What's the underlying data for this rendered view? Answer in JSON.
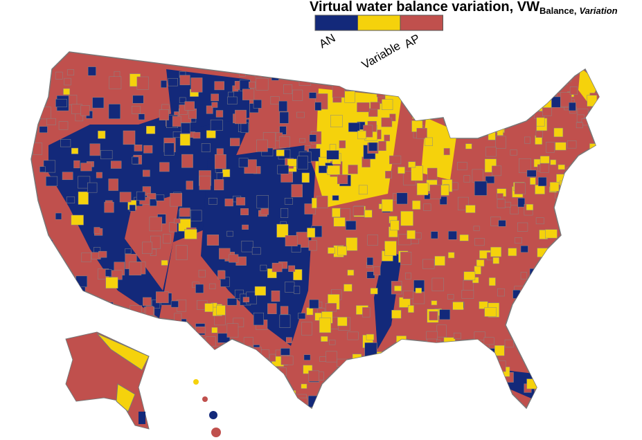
{
  "title": {
    "main": "Virtual water balance variation, VW",
    "subscript": "Balance,",
    "subscript_italic": "Variation"
  },
  "legend": {
    "items": [
      {
        "label": "AN",
        "color": "#13297a"
      },
      {
        "label": "Variable",
        "color": "#f5d20c"
      },
      {
        "label": "AP",
        "color": "#c0504d"
      }
    ]
  }
}
